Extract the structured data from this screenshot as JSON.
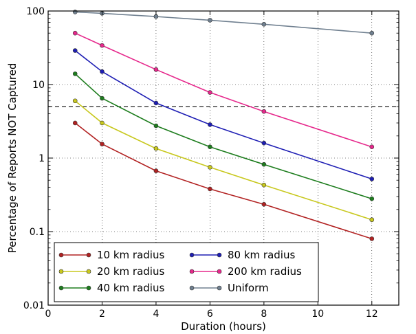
{
  "chart_data": {
    "type": "line",
    "title": "",
    "xlabel": "Duration (hours)",
    "ylabel": "Percentage of Reports NOT Captured",
    "xlim": [
      0,
      13
    ],
    "ylim": [
      0.01,
      100
    ],
    "yscale": "log",
    "grid": true,
    "legend_position": "lower-left",
    "x_ticks": [
      0,
      2,
      4,
      6,
      8,
      10,
      12
    ],
    "y_ticks": [
      0.01,
      0.1,
      1,
      10,
      100
    ],
    "y_tick_labels": [
      "0.01",
      "0.1",
      "1",
      "10",
      "100"
    ],
    "reference_line": {
      "y": 5,
      "style": "dashed",
      "color": "#333333"
    },
    "x": [
      1,
      2,
      4,
      6,
      8,
      12
    ],
    "series": [
      {
        "name": "10 km radius",
        "color": "#b22222",
        "values": [
          3.0,
          1.55,
          0.67,
          0.38,
          0.235,
          0.08
        ]
      },
      {
        "name": "20 km radius",
        "color": "#c8c81e",
        "values": [
          6.0,
          3.0,
          1.35,
          0.75,
          0.43,
          0.145
        ]
      },
      {
        "name": "40 km radius",
        "color": "#1e7d1e",
        "values": [
          14.0,
          6.5,
          2.75,
          1.42,
          0.82,
          0.28
        ]
      },
      {
        "name": "80 km radius",
        "color": "#1e1eb4",
        "values": [
          29.0,
          15.0,
          5.6,
          2.85,
          1.6,
          0.52
        ]
      },
      {
        "name": "200 km radius",
        "color": "#e6288c",
        "values": [
          50.0,
          34.0,
          16.0,
          7.8,
          4.3,
          1.42
        ]
      },
      {
        "name": "Uniform",
        "color": "#708090",
        "values": [
          97.0,
          93.0,
          84.0,
          75.0,
          66.0,
          50.0
        ]
      }
    ]
  }
}
